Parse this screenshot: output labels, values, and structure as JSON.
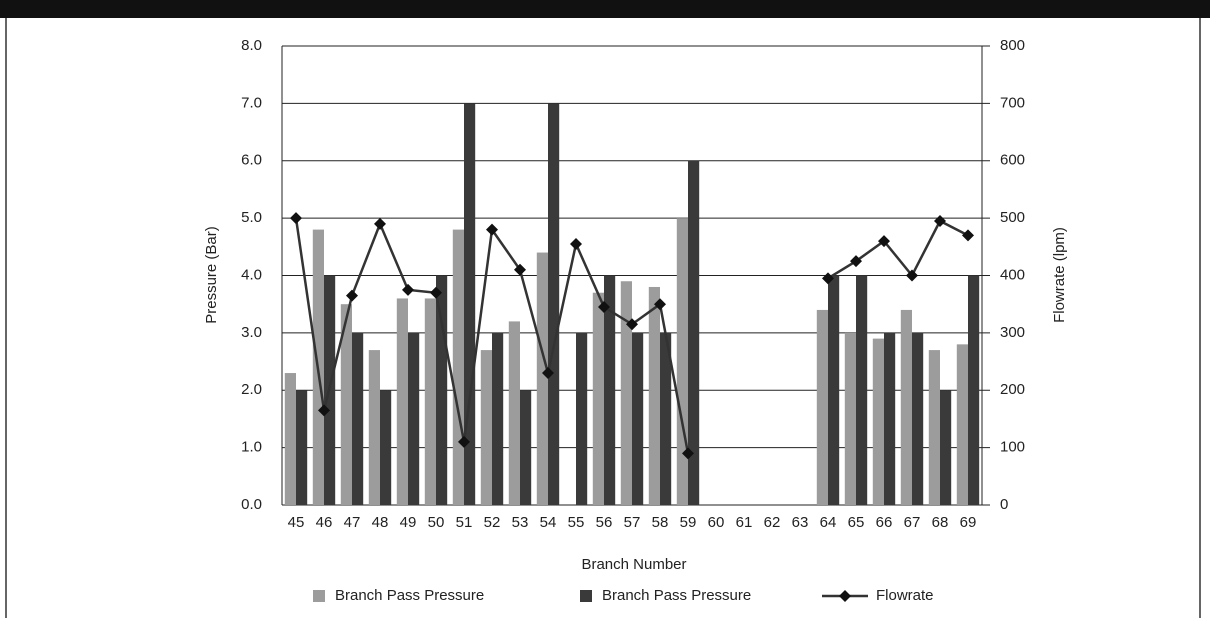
{
  "chart_data": {
    "type": "bar",
    "xlabel": "Branch Number",
    "ylabel": "Pressure (Bar)",
    "y2label": "Flowrate (lpm)",
    "categories": [
      "45",
      "46",
      "47",
      "48",
      "49",
      "50",
      "51",
      "52",
      "53",
      "54",
      "55",
      "56",
      "57",
      "58",
      "59",
      "60",
      "61",
      "62",
      "63",
      "64",
      "65",
      "66",
      "67",
      "68",
      "69"
    ],
    "series": [
      {
        "name": "Branch Pass Pressure",
        "color": "#9c9c9c",
        "type": "bar",
        "values": [
          2.3,
          4.8,
          3.5,
          2.7,
          3.6,
          3.6,
          4.8,
          2.7,
          3.2,
          4.4,
          null,
          3.7,
          3.9,
          3.8,
          5.0,
          null,
          null,
          null,
          null,
          3.4,
          3.0,
          2.9,
          3.4,
          2.7,
          2.8
        ]
      },
      {
        "name": "Branch Pass Pressure",
        "color": "#3a3a3a",
        "type": "bar",
        "values": [
          2.0,
          4.0,
          3.0,
          2.0,
          3.0,
          4.0,
          7.0,
          3.0,
          2.0,
          7.0,
          3.0,
          4.0,
          3.0,
          3.0,
          6.0,
          null,
          null,
          null,
          null,
          4.0,
          4.0,
          3.0,
          3.0,
          2.0,
          4.0
        ]
      },
      {
        "name": "Flowrate",
        "color": "#333333",
        "type": "line",
        "axis": "y2",
        "values": [
          500,
          165,
          365,
          490,
          375,
          370,
          110,
          480,
          410,
          230,
          455,
          345,
          315,
          350,
          90,
          null,
          null,
          null,
          null,
          395,
          425,
          460,
          400,
          495,
          470
        ]
      }
    ],
    "ylim": [
      0,
      8
    ],
    "yticks": [
      {
        "value": 0,
        "label": "0.0"
      },
      {
        "value": 1,
        "label": "1.0"
      },
      {
        "value": 2,
        "label": "2.0"
      },
      {
        "value": 3,
        "label": "3.0"
      },
      {
        "value": 4,
        "label": "4.0"
      },
      {
        "value": 5,
        "label": "5.0"
      },
      {
        "value": 6,
        "label": "6.0"
      },
      {
        "value": 7,
        "label": "7.0"
      },
      {
        "value": 8,
        "label": "8.0"
      }
    ],
    "y2lim": [
      0,
      800
    ],
    "y2ticks": [
      0,
      100,
      200,
      300,
      400,
      500,
      600,
      700,
      800
    ],
    "grid": true,
    "legend": "bottom"
  }
}
